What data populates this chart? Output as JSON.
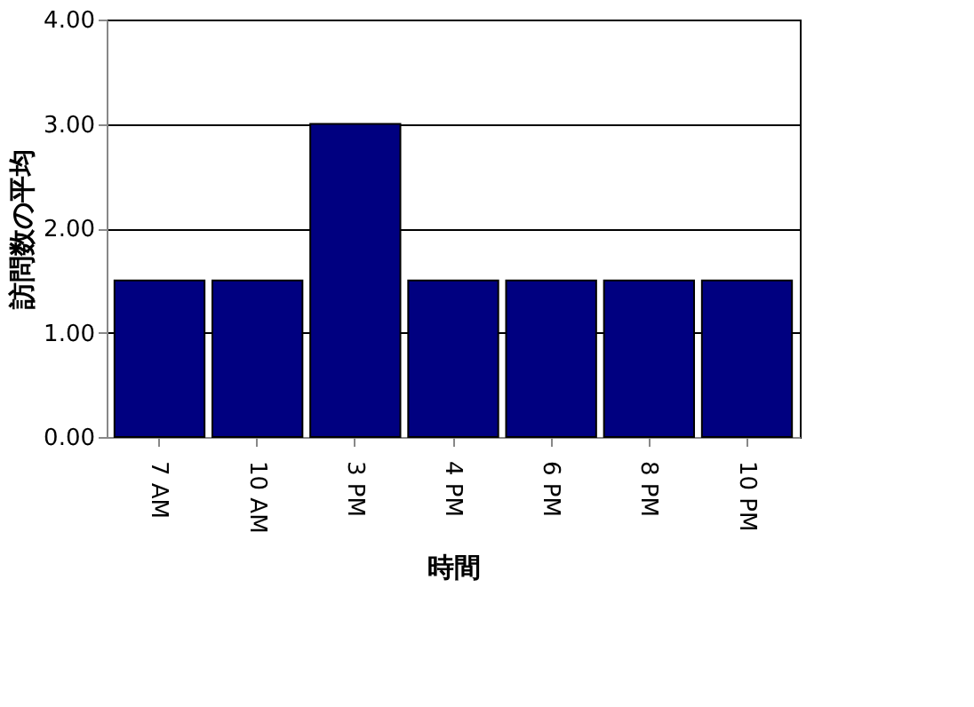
{
  "chart_data": {
    "type": "bar",
    "xlabel": "時間",
    "ylabel": "訪問数の平均",
    "categories": [
      "7 AM",
      "10 AM",
      "3 PM",
      "4 PM",
      "6 PM",
      "8 PM",
      "10 PM"
    ],
    "values": [
      1.5,
      1.5,
      3.0,
      1.5,
      1.5,
      1.5,
      1.5
    ],
    "color": "#000080",
    "ylim": [
      0,
      4
    ],
    "yticks": [
      {
        "value": 0,
        "label": "0.00"
      },
      {
        "value": 1,
        "label": "1.00"
      },
      {
        "value": 2,
        "label": "2.00"
      },
      {
        "value": 3,
        "label": "3.00"
      },
      {
        "value": 4,
        "label": "4.00"
      }
    ],
    "grid": "y"
  }
}
